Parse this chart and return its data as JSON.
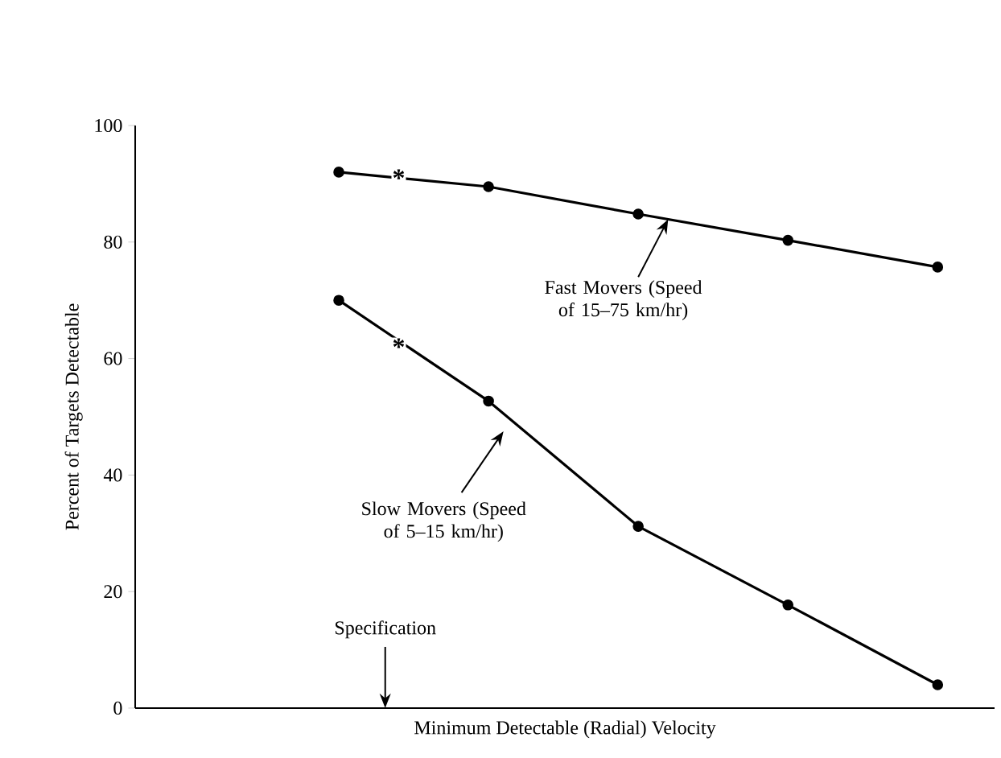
{
  "chart_data": {
    "type": "line",
    "xlabel": "Minimum Detectable (Radial) Velocity",
    "ylabel": "Percent of Targets Detectable",
    "categories": [
      null,
      null,
      null,
      null,
      null
    ],
    "series": [
      {
        "name": "Fast Movers (Speed of 15–75 km/hr)",
        "color": "#000000",
        "values": [
          92,
          89.5,
          84.8,
          80.3,
          75.7
        ]
      },
      {
        "name": "Slow Movers (Speed of 5–15 km/hr)",
        "color": "#000000",
        "values": [
          70,
          52.7,
          31.2,
          17.7,
          4
        ]
      }
    ],
    "ylim": [
      0,
      100
    ],
    "yticks": [
      0,
      20,
      40,
      60,
      80,
      100
    ],
    "marker": "circle",
    "annotations": [
      {
        "text": "*",
        "y": 91
      },
      {
        "text": "*",
        "y": 62
      },
      {
        "text": "Specification"
      }
    ]
  }
}
